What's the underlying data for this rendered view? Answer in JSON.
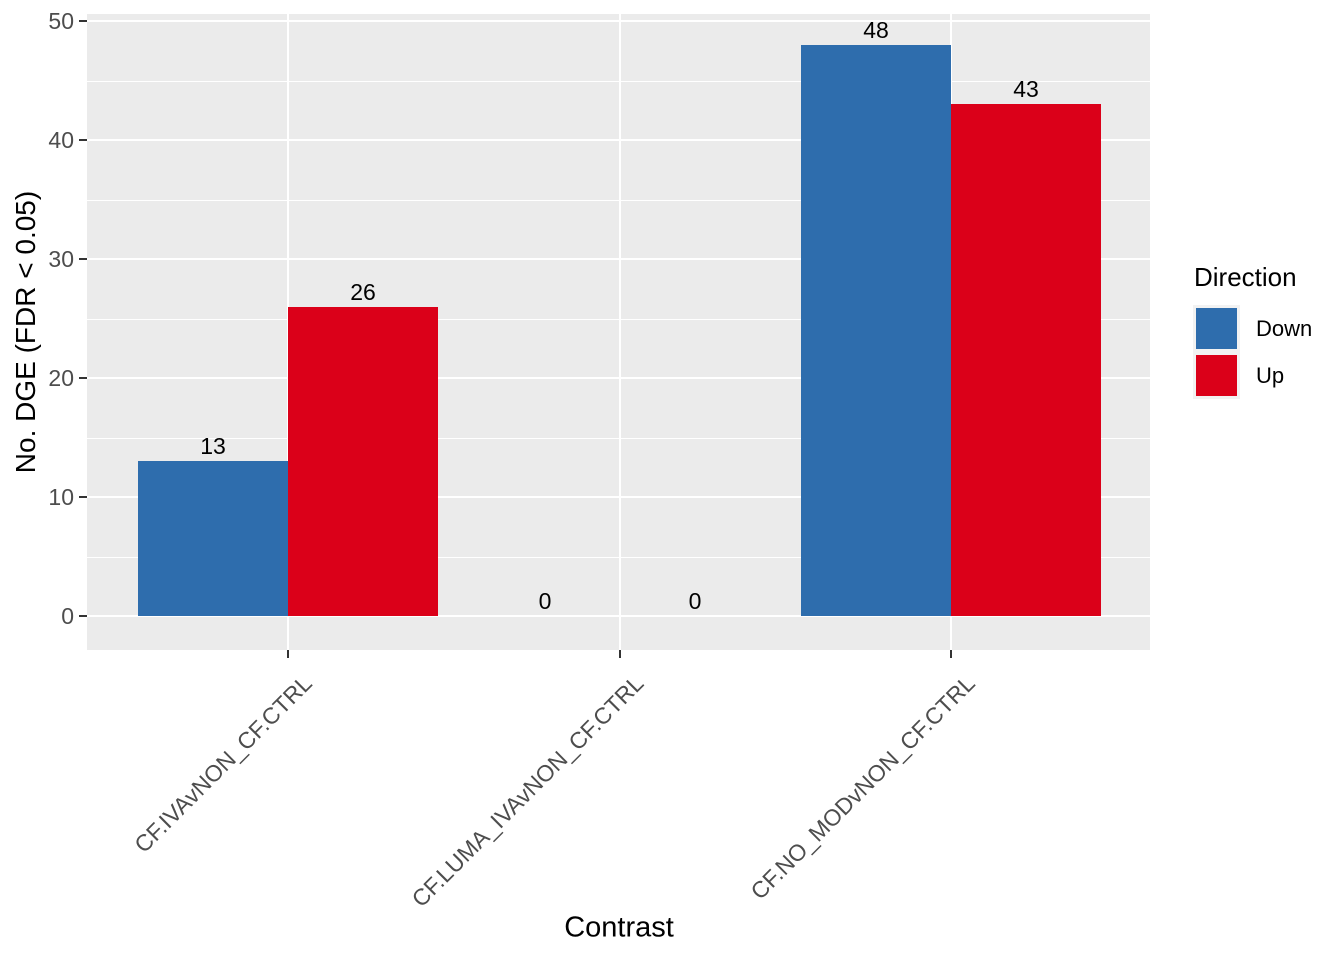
{
  "chart_data": {
    "type": "bar",
    "title": "",
    "xlabel": "Contrast",
    "ylabel": "No. DGE (FDR < 0.05)",
    "categories": [
      "CF.IVAvNON_CF.CTRL",
      "CF.LUMA_IVAvNON_CF.CTRL",
      "CF.NO_MODvNON_CF.CTRL"
    ],
    "series": [
      {
        "name": "Down",
        "color": "#2E6DAD",
        "values": [
          13,
          0,
          48
        ]
      },
      {
        "name": "Up",
        "color": "#DB0019",
        "values": [
          26,
          0,
          43
        ]
      }
    ],
    "bar_value_labels": true,
    "ylim": [
      0,
      50
    ],
    "yticks": [
      0,
      10,
      20,
      30,
      40,
      50
    ],
    "yticks_minor": [
      5,
      15,
      25,
      35,
      45
    ],
    "legend": {
      "title": "Direction",
      "position": "right",
      "entries": [
        "Down",
        "Up"
      ]
    },
    "layout_hints": {
      "grid": "on",
      "panel_background": "#EBEBEB",
      "grid_color": "#FFFFFF",
      "tick_label_color": "#4D4D4D"
    }
  }
}
